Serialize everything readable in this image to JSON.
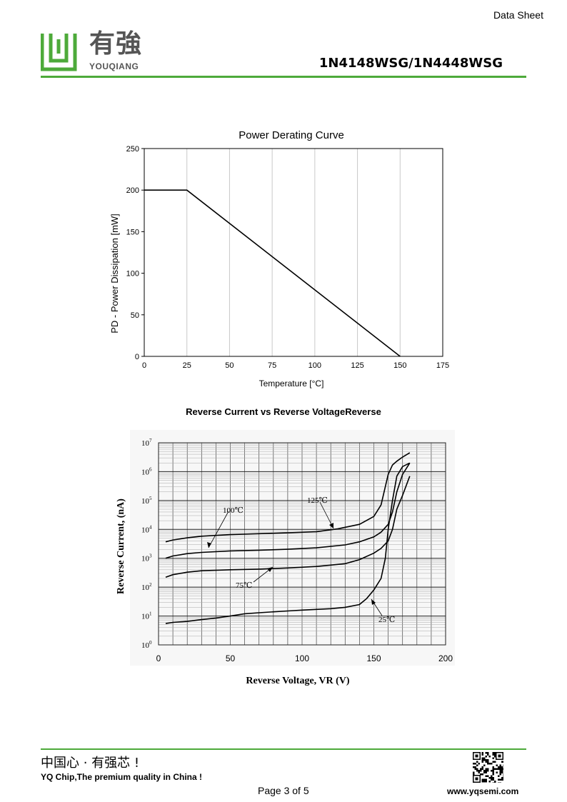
{
  "header": {
    "doc_type": "Data Sheet",
    "logo_cn": "有強",
    "logo_en": "YOUQIANG",
    "part_number": "1N4148WSG/1N4448WSG"
  },
  "footer": {
    "slogan_cn": "中国心 · 有强芯 !",
    "slogan_en": "YQ Chip,The premium quality in China !",
    "page": "Page 3 of 5",
    "website": "www.yqsemi.com"
  },
  "colors": {
    "brand_green": "#4daa3a",
    "logo_gray": "#555555"
  },
  "chart_data": [
    {
      "type": "line",
      "title": "Power Derating Curve",
      "xlabel": "Temperature [°C]",
      "ylabel": "PD - Power Dissipation [mW]",
      "xlim": [
        0,
        175
      ],
      "ylim": [
        0,
        250
      ],
      "x_ticks": [
        "0",
        "25",
        "50",
        "75",
        "100",
        "125",
        "150",
        "175"
      ],
      "y_ticks": [
        "0",
        "50",
        "100",
        "150",
        "200",
        "250"
      ],
      "grid": "vertical",
      "series": [
        {
          "x": [
            0,
            25,
            150
          ],
          "y": [
            200,
            200,
            0
          ]
        }
      ]
    },
    {
      "type": "line",
      "title": "Reverse Current vs Reverse VoltageReverse",
      "xlabel": "Reverse Voltage, VR (V)",
      "ylabel": "Reverse Current, (nA)",
      "xlim": [
        0,
        200
      ],
      "ylim": [
        1,
        10000000
      ],
      "y_scale": "log",
      "x_ticks": [
        "0",
        "50",
        "100",
        "150",
        "200"
      ],
      "y_tick_exponents": [
        "0",
        "1",
        "2",
        "3",
        "4",
        "5",
        "6",
        "7"
      ],
      "grid": "both",
      "series": [
        {
          "name": "25℃",
          "x": [
            5,
            10,
            20,
            30,
            40,
            50,
            60,
            70,
            80,
            90,
            100,
            110,
            120,
            130,
            140,
            145,
            150,
            155,
            158,
            160,
            163,
            166,
            170,
            175
          ],
          "y": [
            5.5,
            6,
            6.5,
            7.5,
            8.5,
            10,
            12,
            13,
            14,
            15,
            16,
            17,
            18,
            20,
            25,
            40,
            80,
            200,
            1000,
            10000,
            100000,
            700000,
            1500000,
            2000000
          ]
        },
        {
          "name": "75℃",
          "x": [
            5,
            10,
            20,
            30,
            50,
            70,
            90,
            110,
            130,
            140,
            150,
            155,
            160,
            163,
            166,
            170,
            175
          ],
          "y": [
            220,
            270,
            330,
            370,
            400,
            420,
            460,
            520,
            650,
            900,
            1500,
            2200,
            4000,
            10000,
            50000,
            150000,
            700000
          ]
        },
        {
          "name": "100℃",
          "x": [
            5,
            10,
            20,
            30,
            50,
            70,
            90,
            110,
            130,
            140,
            150,
            155,
            160,
            163,
            166,
            170,
            175
          ],
          "y": [
            1000,
            1200,
            1450,
            1600,
            1800,
            1900,
            2050,
            2300,
            2900,
            3700,
            5500,
            8000,
            15000,
            40000,
            200000,
            800000,
            2000000
          ]
        },
        {
          "name": "125℃",
          "x": [
            5,
            10,
            20,
            30,
            50,
            70,
            90,
            110,
            125,
            140,
            150,
            155,
            160,
            163,
            166,
            170,
            175
          ],
          "y": [
            3700,
            4300,
            5100,
            5800,
            6600,
            7100,
            7600,
            8300,
            10500,
            15000,
            28000,
            70000,
            800000,
            1700000,
            2300000,
            3200000,
            4500000
          ]
        }
      ]
    }
  ]
}
